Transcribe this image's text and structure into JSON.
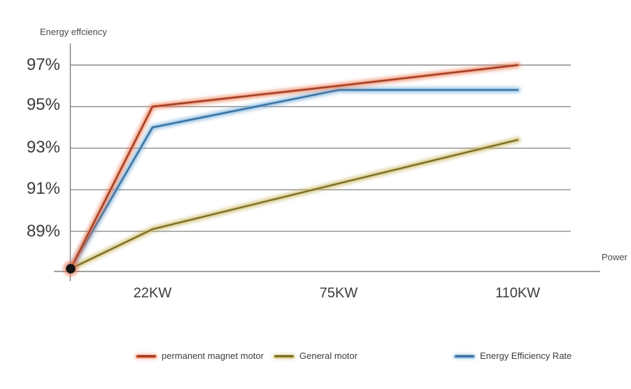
{
  "page": {
    "background_color": "#ffffff"
  },
  "chart_data": {
    "type": "line",
    "title": "",
    "y_axis_label": "Energy effciency",
    "x_axis_label": "Power",
    "y_ticks": [
      {
        "label": "97%",
        "value": 97
      },
      {
        "label": "95%",
        "value": 95
      },
      {
        "label": "93%",
        "value": 93
      },
      {
        "label": "91%",
        "value": 91
      },
      {
        "label": "89%",
        "value": 89
      }
    ],
    "y_axis_range_shown": [
      87.2,
      97.6
    ],
    "x_ticks": [
      "22KW",
      "75KW",
      "110KW"
    ],
    "x_points": [
      "origin",
      "22KW",
      "75KW",
      "110KW"
    ],
    "grid": "horizontal-only",
    "legend_position": "bottom",
    "series": [
      {
        "name": "permanent magnet motor",
        "color": "#e8714c",
        "core_color": "#6e2f1e",
        "values": [
          87.2,
          95,
          96,
          97
        ]
      },
      {
        "name": "General motor",
        "color": "#c3b05a",
        "core_color": "#57501f",
        "values": [
          87.2,
          89.1,
          91.3,
          93.4
        ]
      },
      {
        "name": "Energy Efficiency Rate",
        "color": "#6fa8d6",
        "core_color": "#29567e",
        "values": [
          87.2,
          94,
          95.8,
          95.8
        ]
      }
    ],
    "origin_dot_color": "#141414",
    "grid_color": "#8c8c8c",
    "axis_color": "#808080"
  }
}
